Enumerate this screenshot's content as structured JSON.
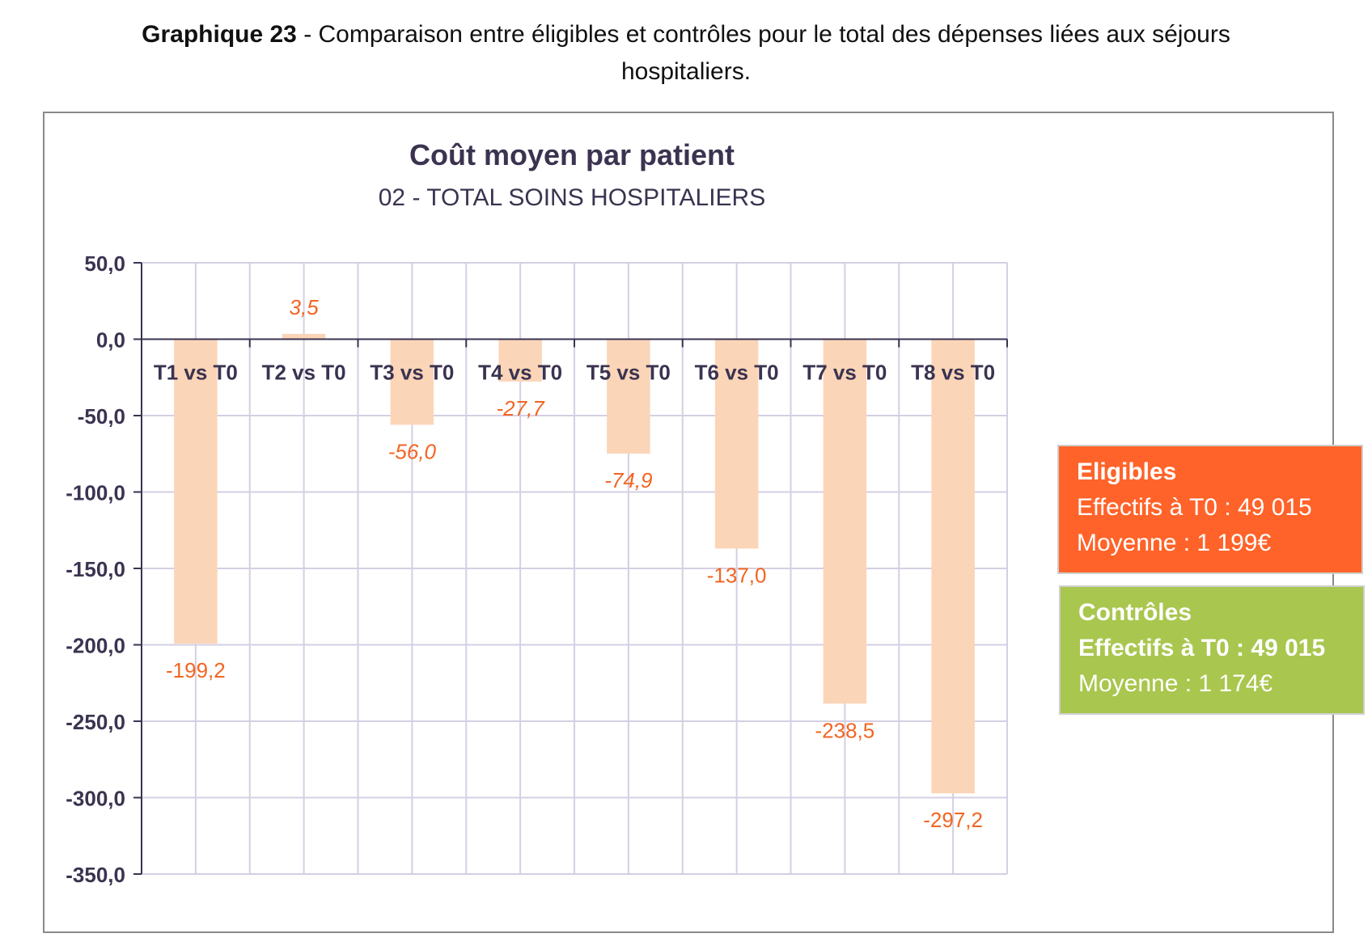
{
  "caption": {
    "label": "Graphique 23",
    "text_line1": " - Comparaison entre éligibles et contrôles pour le total des dépenses liées aux séjours",
    "text_line2": "hospitaliers."
  },
  "chart_data": {
    "type": "bar",
    "title": "Coût moyen par patient",
    "subtitle": "02 - TOTAL SOINS HOSPITALIERS",
    "categories": [
      "T1 vs T0",
      "T2 vs T0",
      "T3 vs T0",
      "T4 vs T0",
      "T5 vs T0",
      "T6 vs T0",
      "T7 vs T0",
      "T8 vs T0"
    ],
    "series": [
      {
        "values": [
          -199.2,
          3.5,
          -56.0,
          -27.7,
          -74.9,
          -137.0,
          -238.5,
          -297.2
        ],
        "labels": [
          "-199,2",
          "3,5",
          "-56,0",
          "-27,7",
          "-74,9",
          "-137,0",
          "-238,5",
          "-297,2"
        ],
        "label_italic": [
          false,
          true,
          true,
          true,
          true,
          false,
          false,
          false
        ]
      }
    ],
    "ylim": [
      -350,
      50
    ],
    "yticks": [
      50,
      0,
      -50,
      -100,
      -150,
      -200,
      -250,
      -300,
      -350
    ],
    "ytick_labels": [
      "50,0",
      "0,0",
      "-50,0",
      "-100,0",
      "-150,0",
      "-200,0",
      "-250,0",
      "-300,0",
      "-350,0"
    ],
    "grid": true,
    "legend_position": "right",
    "colors": {
      "bar": "#fbd5b8",
      "data_label": "#f26522",
      "grid": "#d5cfe3",
      "axis": "#3b3350",
      "title": "#3b3350"
    }
  },
  "legend": {
    "eligibles": {
      "title": "Eligibles",
      "line1": "Effectifs à T0 : 49 015",
      "line2": "Moyenne : 1 199€",
      "color": "#ff6329"
    },
    "controles": {
      "title": "Contrôles",
      "line1": "Effectifs à T0 : 49 015",
      "line2": "Moyenne : 1 174€",
      "color": "#a9c64e"
    }
  }
}
